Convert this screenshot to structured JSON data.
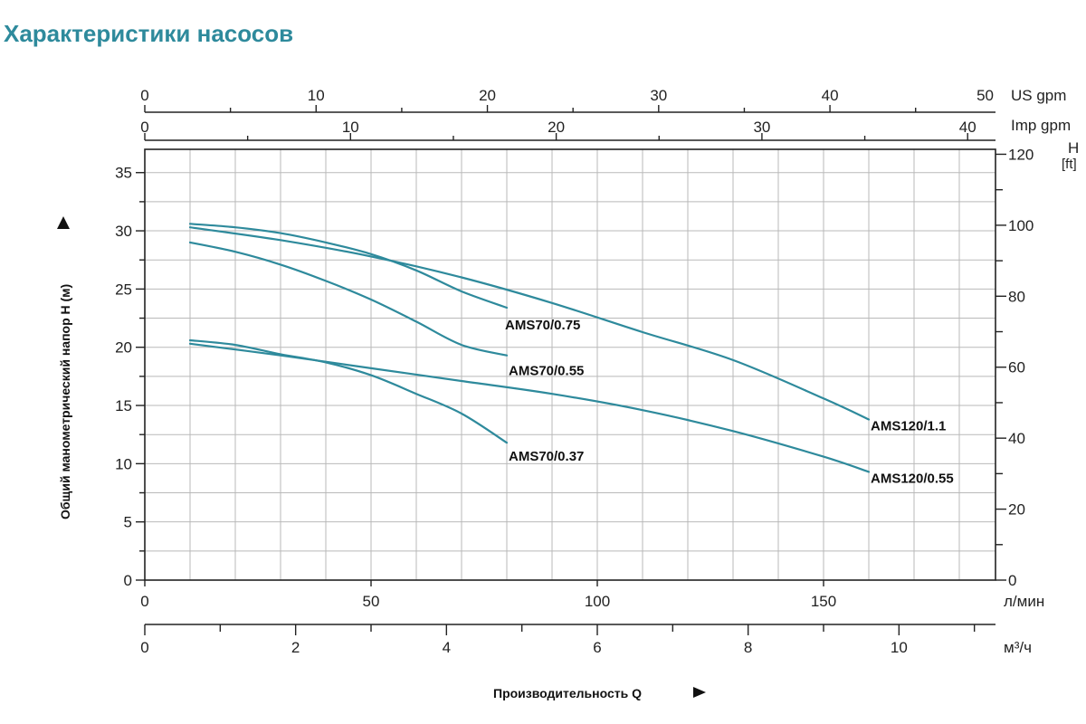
{
  "chart_data": {
    "type": "line",
    "title": "Характеристики насосов",
    "xlabel": "Производительность Q",
    "ylabel": "Общий манометрический напор H (м)",
    "x_unit": "л/мин",
    "xlim": [
      0,
      188
    ],
    "ylim": [
      0,
      37
    ],
    "grid": true,
    "y_ticks": [
      0,
      5,
      10,
      15,
      20,
      25,
      30,
      35
    ],
    "x_ticks": [
      0,
      50,
      100,
      150
    ],
    "secondary_axes": {
      "bottom_m3h": {
        "unit": "м³/ч",
        "ticks": [
          0,
          2,
          4,
          6,
          8,
          10
        ]
      },
      "top_us_gpm": {
        "unit": "US gpm",
        "ticks": [
          0,
          10,
          20,
          30,
          40,
          50
        ]
      },
      "top_imp_gpm": {
        "unit": "Imp gpm",
        "ticks": [
          0,
          10,
          20,
          30,
          40
        ]
      },
      "right_ft": {
        "unit_top": "H",
        "unit_bottom": "[ft]",
        "ticks": [
          0,
          20,
          40,
          60,
          80,
          100,
          120
        ]
      }
    },
    "series": [
      {
        "name": "AMS70/0.75",
        "x": [
          10,
          20,
          30,
          40,
          50,
          60,
          70,
          80
        ],
        "y": [
          30.6,
          30.3,
          29.8,
          29.0,
          28.0,
          26.6,
          24.8,
          23.4
        ]
      },
      {
        "name": "AMS70/0.55",
        "x": [
          10,
          20,
          30,
          40,
          50,
          60,
          70,
          80
        ],
        "y": [
          29.0,
          28.2,
          27.1,
          25.7,
          24.1,
          22.2,
          20.2,
          19.3
        ]
      },
      {
        "name": "AMS120/1.1",
        "x": [
          10,
          30,
          50,
          70,
          90,
          110,
          130,
          150,
          160
        ],
        "y": [
          30.3,
          29.2,
          27.8,
          26.0,
          23.8,
          21.3,
          18.9,
          15.6,
          13.8
        ]
      },
      {
        "name": "AMS70/0.37",
        "x": [
          10,
          20,
          30,
          40,
          50,
          60,
          70,
          80
        ],
        "y": [
          20.6,
          20.2,
          19.4,
          18.7,
          17.6,
          16.0,
          14.3,
          11.8
        ]
      },
      {
        "name": "AMS120/0.55",
        "x": [
          10,
          30,
          50,
          70,
          90,
          110,
          130,
          150,
          160
        ],
        "y": [
          20.3,
          19.3,
          18.2,
          17.1,
          16.0,
          14.6,
          12.8,
          10.6,
          9.3
        ]
      }
    ]
  }
}
